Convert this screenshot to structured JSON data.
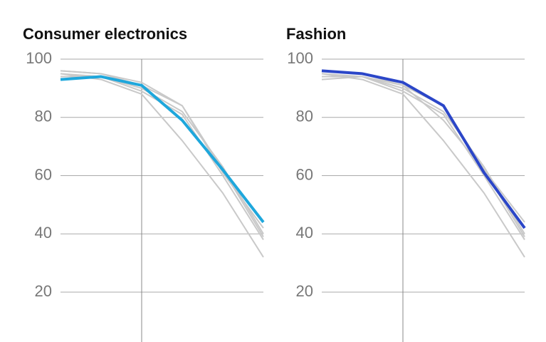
{
  "chart_data": [
    {
      "type": "line",
      "title": "Consumer electronics",
      "categories": [
        null,
        null,
        null,
        null,
        null,
        null
      ],
      "ylim": [
        20,
        100
      ],
      "yticks": [
        20,
        40,
        60,
        80,
        100
      ],
      "grid": true,
      "series": [
        {
          "color": "#c9c9c9",
          "values": [
            96,
            95,
            91,
            84,
            62,
            39
          ]
        },
        {
          "color": "#c9c9c9",
          "values": [
            95,
            93,
            88,
            72,
            54,
            32
          ]
        },
        {
          "color": "#c9c9c9",
          "values": [
            94,
            94,
            90,
            82,
            63,
            40
          ]
        },
        {
          "color": "#c9c9c9",
          "values": [
            95,
            94,
            89,
            81,
            60,
            38
          ]
        },
        {
          "color": "#c9c9c9",
          "values": [
            96,
            95,
            92,
            84,
            61,
            42
          ]
        },
        {
          "color": "#1ea7dc",
          "values": [
            93,
            94,
            91,
            79,
            62,
            44
          ]
        }
      ]
    },
    {
      "type": "line",
      "title": "Fashion",
      "categories": [
        null,
        null,
        null,
        null,
        null,
        null
      ],
      "ylim": [
        20,
        100
      ],
      "yticks": [
        20,
        40,
        60,
        80,
        100
      ],
      "grid": true,
      "series": [
        {
          "color": "#c9c9c9",
          "values": [
            96,
            95,
            91,
            84,
            62,
            39
          ]
        },
        {
          "color": "#c9c9c9",
          "values": [
            95,
            93,
            88,
            72,
            54,
            32
          ]
        },
        {
          "color": "#c9c9c9",
          "values": [
            94,
            94,
            90,
            82,
            63,
            40
          ]
        },
        {
          "color": "#c9c9c9",
          "values": [
            95,
            94,
            89,
            81,
            60,
            38
          ]
        },
        {
          "color": "#c9c9c9",
          "values": [
            93,
            94,
            91,
            79,
            62,
            44
          ]
        },
        {
          "color": "#2b46c8",
          "values": [
            96,
            95,
            92,
            84,
            61,
            42
          ]
        }
      ]
    }
  ]
}
